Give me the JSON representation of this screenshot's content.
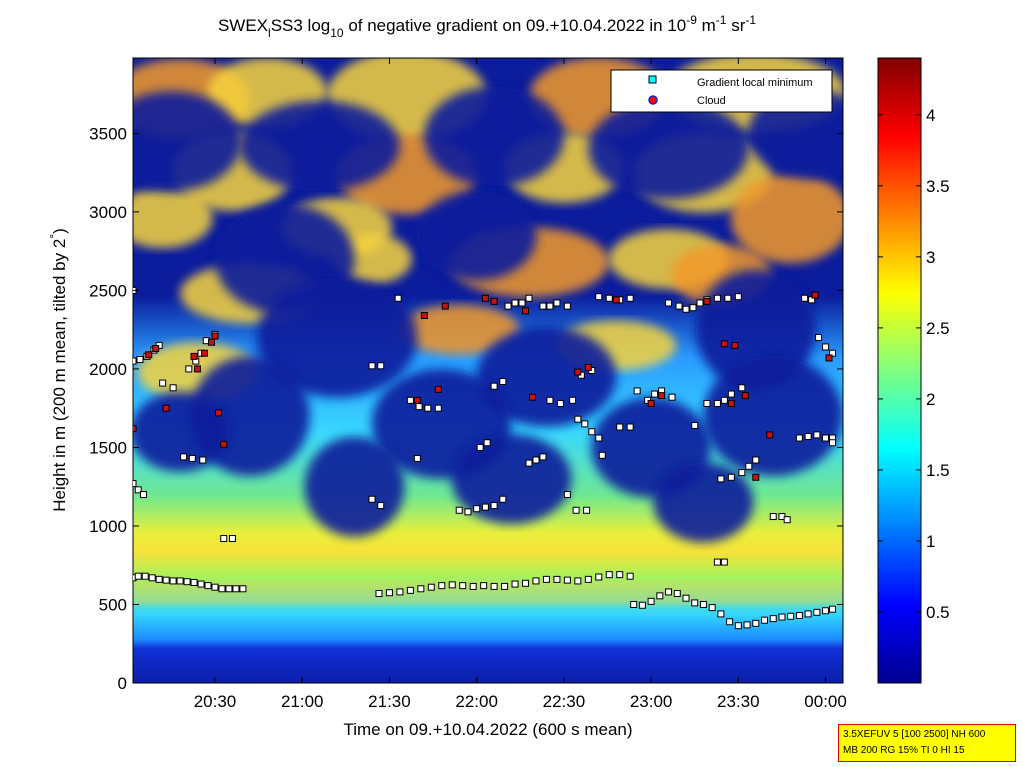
{
  "chart_data": {
    "type": "heatmap",
    "title": {
      "prefix": "SWEX",
      "sub1": "l",
      "part2": "SS3 log",
      "sub2": "10",
      "part3": " of negative gradient on 09.+10.04.2022 in 10",
      "sup1": "-9",
      "part4": " m",
      "sup2": "-1",
      "part5": " sr",
      "sup3": "-1"
    },
    "xlabel": "Time on 09.+10.04.2022 (600 s mean)",
    "ylabel": {
      "main": "Height in m (200 m mean, tilted by 2",
      "degree": "°",
      "end": ")"
    },
    "x_unit": "hours since 09.04.2022 00:00",
    "xlim": [
      20.03,
      24.1
    ],
    "ylim": [
      0,
      3980
    ],
    "x_ticks": [
      {
        "value": 20.5,
        "label": "20:30"
      },
      {
        "value": 21.0,
        "label": "21:00"
      },
      {
        "value": 21.5,
        "label": "21:30"
      },
      {
        "value": 22.0,
        "label": "22:00"
      },
      {
        "value": 22.5,
        "label": "22:30"
      },
      {
        "value": 23.0,
        "label": "23:00"
      },
      {
        "value": 23.5,
        "label": "23:30"
      },
      {
        "value": 24.0,
        "label": "00:00"
      }
    ],
    "y_ticks": [
      {
        "value": 0,
        "label": "0"
      },
      {
        "value": 500,
        "label": "500"
      },
      {
        "value": 1000,
        "label": "1000"
      },
      {
        "value": 1500,
        "label": "1500"
      },
      {
        "value": 2000,
        "label": "2000"
      },
      {
        "value": 2500,
        "label": "2500"
      },
      {
        "value": 3000,
        "label": "3000"
      },
      {
        "value": 3500,
        "label": "3500"
      }
    ],
    "colorbar": {
      "colormap": "jet",
      "range": [
        0,
        4.4
      ],
      "ticks": [
        {
          "value": 0.5,
          "label": "0.5"
        },
        {
          "value": 1.0,
          "label": "1"
        },
        {
          "value": 1.5,
          "label": "1.5"
        },
        {
          "value": 2.0,
          "label": "2"
        },
        {
          "value": 2.5,
          "label": "2.5"
        },
        {
          "value": 3.0,
          "label": "3"
        },
        {
          "value": 3.5,
          "label": "3.5"
        },
        {
          "value": 4.0,
          "label": "4"
        }
      ]
    },
    "legend": {
      "placement": "top-right",
      "entries": [
        {
          "label": "Gradient local minimum",
          "marker": "square",
          "color": "#00ffff"
        },
        {
          "label": "Cloud",
          "marker": "circle",
          "color": "#ff0000"
        }
      ]
    },
    "series": [
      {
        "name": "Gradient local minimum",
        "marker_color": "#ffffff",
        "points": [
          [
            20.03,
            670
          ],
          [
            20.06,
            680
          ],
          [
            20.1,
            680
          ],
          [
            20.14,
            670
          ],
          [
            20.18,
            660
          ],
          [
            20.22,
            655
          ],
          [
            20.26,
            650
          ],
          [
            20.3,
            650
          ],
          [
            20.34,
            645
          ],
          [
            20.38,
            640
          ],
          [
            20.42,
            630
          ],
          [
            20.46,
            620
          ],
          [
            20.5,
            610
          ],
          [
            20.54,
            600
          ],
          [
            20.58,
            600
          ],
          [
            20.62,
            600
          ],
          [
            20.66,
            600
          ],
          [
            21.44,
            570
          ],
          [
            21.5,
            575
          ],
          [
            21.56,
            580
          ],
          [
            21.62,
            590
          ],
          [
            21.68,
            600
          ],
          [
            21.74,
            610
          ],
          [
            21.8,
            620
          ],
          [
            21.86,
            625
          ],
          [
            21.92,
            620
          ],
          [
            21.98,
            615
          ],
          [
            22.04,
            620
          ],
          [
            22.1,
            615
          ],
          [
            22.16,
            615
          ],
          [
            22.22,
            630
          ],
          [
            22.28,
            635
          ],
          [
            22.34,
            650
          ],
          [
            22.4,
            660
          ],
          [
            22.46,
            660
          ],
          [
            22.52,
            655
          ],
          [
            22.58,
            650
          ],
          [
            22.64,
            660
          ],
          [
            22.7,
            675
          ],
          [
            22.76,
            690
          ],
          [
            22.82,
            690
          ],
          [
            22.88,
            680
          ],
          [
            22.9,
            500
          ],
          [
            22.95,
            495
          ],
          [
            23.0,
            520
          ],
          [
            23.05,
            555
          ],
          [
            23.1,
            580
          ],
          [
            23.15,
            570
          ],
          [
            23.2,
            540
          ],
          [
            23.25,
            510
          ],
          [
            23.3,
            500
          ],
          [
            23.35,
            480
          ],
          [
            23.4,
            440
          ],
          [
            23.45,
            390
          ],
          [
            23.5,
            365
          ],
          [
            23.55,
            370
          ],
          [
            23.6,
            380
          ],
          [
            23.65,
            400
          ],
          [
            23.7,
            410
          ],
          [
            23.75,
            420
          ],
          [
            23.8,
            425
          ],
          [
            23.85,
            430
          ],
          [
            23.9,
            440
          ],
          [
            23.95,
            450
          ],
          [
            24.0,
            460
          ],
          [
            24.04,
            470
          ],
          [
            20.03,
            2050
          ],
          [
            20.07,
            2060
          ],
          [
            20.11,
            2080
          ],
          [
            20.15,
            2120
          ],
          [
            20.18,
            2150
          ],
          [
            20.35,
            2000
          ],
          [
            20.39,
            2050
          ],
          [
            20.42,
            2100
          ],
          [
            20.45,
            2180
          ],
          [
            20.5,
            2220
          ],
          [
            20.03,
            2500
          ],
          [
            20.2,
            1910
          ],
          [
            20.26,
            1880
          ],
          [
            20.32,
            1440
          ],
          [
            20.37,
            1430
          ],
          [
            20.43,
            1420
          ],
          [
            20.03,
            1270
          ],
          [
            20.06,
            1230
          ],
          [
            20.09,
            1200
          ],
          [
            20.55,
            920
          ],
          [
            20.6,
            920
          ],
          [
            21.4,
            2020
          ],
          [
            21.45,
            2020
          ],
          [
            21.55,
            2450
          ],
          [
            21.62,
            1800
          ],
          [
            21.67,
            1760
          ],
          [
            21.72,
            1750
          ],
          [
            21.78,
            1750
          ],
          [
            21.66,
            1430
          ],
          [
            21.4,
            1170
          ],
          [
            21.45,
            1130
          ],
          [
            21.9,
            1100
          ],
          [
            21.95,
            1090
          ],
          [
            22.0,
            1110
          ],
          [
            22.05,
            1120
          ],
          [
            22.1,
            1130
          ],
          [
            22.15,
            1170
          ],
          [
            22.02,
            1500
          ],
          [
            22.06,
            1530
          ],
          [
            22.1,
            1890
          ],
          [
            22.15,
            1920
          ],
          [
            22.18,
            2400
          ],
          [
            22.22,
            2420
          ],
          [
            22.26,
            2420
          ],
          [
            22.3,
            2450
          ],
          [
            22.38,
            2400
          ],
          [
            22.42,
            2400
          ],
          [
            22.46,
            2420
          ],
          [
            22.52,
            2400
          ],
          [
            22.3,
            1400
          ],
          [
            22.34,
            1420
          ],
          [
            22.38,
            1440
          ],
          [
            22.42,
            1800
          ],
          [
            22.48,
            1780
          ],
          [
            22.55,
            1800
          ],
          [
            22.58,
            1680
          ],
          [
            22.62,
            1650
          ],
          [
            22.66,
            1600
          ],
          [
            22.7,
            1560
          ],
          [
            22.52,
            1200
          ],
          [
            22.57,
            1100
          ],
          [
            22.63,
            1100
          ],
          [
            22.6,
            1960
          ],
          [
            22.66,
            1990
          ],
          [
            22.7,
            2460
          ],
          [
            22.76,
            2450
          ],
          [
            22.82,
            2440
          ],
          [
            22.88,
            2450
          ],
          [
            22.72,
            1450
          ],
          [
            22.82,
            1630
          ],
          [
            22.88,
            1630
          ],
          [
            22.92,
            1860
          ],
          [
            22.98,
            1800
          ],
          [
            23.02,
            1840
          ],
          [
            23.06,
            1860
          ],
          [
            23.12,
            1820
          ],
          [
            23.1,
            2420
          ],
          [
            23.16,
            2400
          ],
          [
            23.2,
            2380
          ],
          [
            23.24,
            2390
          ],
          [
            23.28,
            2420
          ],
          [
            23.32,
            2440
          ],
          [
            23.38,
            2450
          ],
          [
            23.44,
            2450
          ],
          [
            23.5,
            2460
          ],
          [
            23.25,
            1640
          ],
          [
            23.32,
            1780
          ],
          [
            23.38,
            1780
          ],
          [
            23.42,
            1800
          ],
          [
            23.46,
            1840
          ],
          [
            23.52,
            1880
          ],
          [
            23.4,
            1300
          ],
          [
            23.46,
            1310
          ],
          [
            23.52,
            1340
          ],
          [
            23.56,
            1380
          ],
          [
            23.6,
            1420
          ],
          [
            23.38,
            770
          ],
          [
            23.42,
            770
          ],
          [
            23.7,
            1060
          ],
          [
            23.75,
            1060
          ],
          [
            23.78,
            1040
          ],
          [
            23.85,
            1560
          ],
          [
            23.9,
            1570
          ],
          [
            23.95,
            1580
          ],
          [
            23.88,
            2450
          ],
          [
            23.92,
            2440
          ],
          [
            23.96,
            2200
          ],
          [
            24.0,
            2140
          ],
          [
            24.04,
            2100
          ],
          [
            24.0,
            1560
          ],
          [
            24.04,
            1560
          ],
          [
            24.04,
            1530
          ]
        ]
      },
      {
        "name": "Cloud",
        "marker_color": "#cc1010",
        "points": [
          [
            20.12,
            2090
          ],
          [
            20.16,
            2130
          ],
          [
            20.38,
            2080
          ],
          [
            20.4,
            2000
          ],
          [
            20.44,
            2100
          ],
          [
            20.48,
            2170
          ],
          [
            20.5,
            2210
          ],
          [
            20.03,
            1620
          ],
          [
            20.22,
            1750
          ],
          [
            20.55,
            1520
          ],
          [
            20.52,
            1720
          ],
          [
            21.7,
            2340
          ],
          [
            21.82,
            2400
          ],
          [
            21.66,
            1800
          ],
          [
            21.78,
            1870
          ],
          [
            22.05,
            2450
          ],
          [
            22.1,
            2430
          ],
          [
            22.28,
            2370
          ],
          [
            22.32,
            1820
          ],
          [
            22.58,
            1980
          ],
          [
            22.64,
            2010
          ],
          [
            22.8,
            2440
          ],
          [
            23.0,
            1780
          ],
          [
            23.06,
            1830
          ],
          [
            23.32,
            2430
          ],
          [
            23.42,
            2160
          ],
          [
            23.48,
            2150
          ],
          [
            23.46,
            1780
          ],
          [
            23.54,
            1830
          ],
          [
            23.6,
            1310
          ],
          [
            23.68,
            1580
          ],
          [
            23.94,
            2470
          ],
          [
            24.02,
            2070
          ]
        ]
      }
    ]
  },
  "info_box": {
    "line1": "3.5XEFUV 5 [100 2500] NH 600",
    "line2": "MB 200 RG 15% TI 0 HI 15"
  }
}
